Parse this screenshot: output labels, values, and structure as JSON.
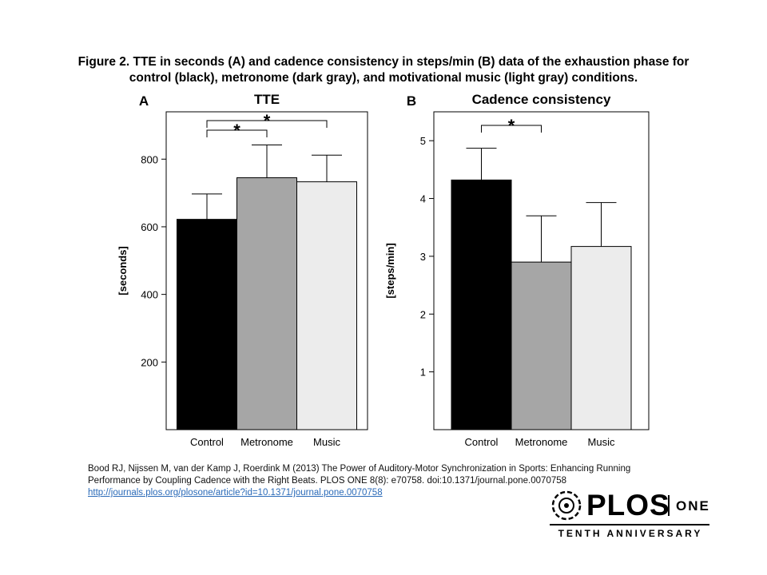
{
  "caption": {
    "prefix": "Figure 2.",
    "text": "TTE in seconds (A) and cadence consistency in steps/min (B) data of the exhaustion phase for control (black), metronome (dark gray), and motivational music (light gray) conditions."
  },
  "citation": {
    "text": "Bood RJ, Nijssen M, van der Kamp J, Roerdink M (2013) The Power of Auditory-Motor Synchronization in Sports: Enhancing Running Performance by Coupling Cadence with the Right Beats. PLOS ONE 8(8): e70758. doi:10.1371/journal.pone.0070758",
    "link": "http://journals.plos.org/plosone/article?id=10.1371/journal.pone.0070758"
  },
  "logo": {
    "word": "PLOS",
    "suffix": "ONE",
    "tagline": "TENTH ANNIVERSARY"
  },
  "colors": {
    "control": "#000000",
    "metronome": "#a6a6a6",
    "music": "#ececec"
  },
  "chart_data": [
    {
      "type": "bar",
      "panel_label": "A",
      "title": "TTE",
      "ylabel": "[seconds]",
      "xlabel": "",
      "categories": [
        "Control",
        "Metronome",
        "Music"
      ],
      "values": [
        622,
        745,
        733
      ],
      "error_upper": [
        697,
        842,
        812
      ],
      "ylim": [
        0,
        940
      ],
      "yticks": [
        200,
        400,
        600,
        800
      ],
      "grid": false,
      "significance": [
        {
          "from": 0,
          "to": 1,
          "label": "*"
        },
        {
          "from": 0,
          "to": 2,
          "label": "*"
        }
      ]
    },
    {
      "type": "bar",
      "panel_label": "B",
      "title": "Cadence consistency",
      "ylabel": "[steps/min]",
      "xlabel": "",
      "categories": [
        "Control",
        "Metronome",
        "Music"
      ],
      "values": [
        4.32,
        2.9,
        3.17
      ],
      "error_upper": [
        4.87,
        3.7,
        3.93
      ],
      "ylim": [
        0,
        5.5
      ],
      "yticks": [
        1,
        2,
        3,
        4,
        5
      ],
      "grid": false,
      "significance": [
        {
          "from": 0,
          "to": 1,
          "label": "*"
        }
      ]
    }
  ]
}
